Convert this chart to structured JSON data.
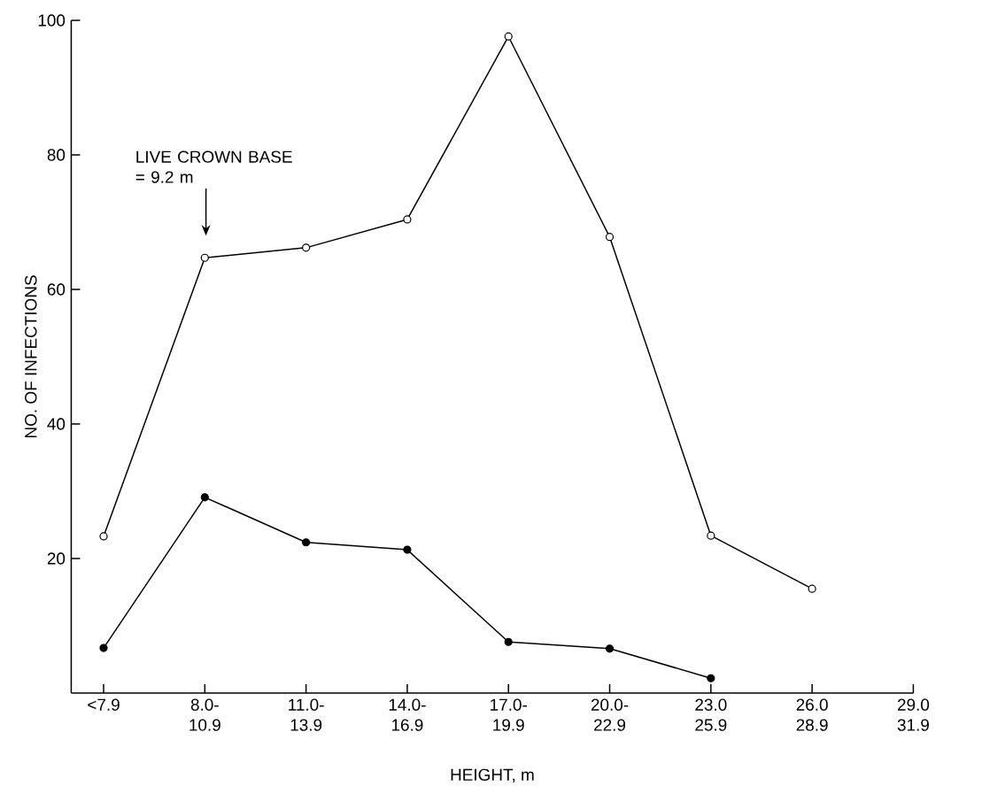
{
  "chart_data": {
    "type": "line",
    "xlabel": "HEIGHT, m",
    "ylabel": "NO. OF INFECTIONS",
    "categories": [
      "<7.9",
      "8.0- 10.9",
      "11.0- 13.9",
      "14.0- 16.9",
      "17.0- 19.9",
      "20.0- 22.9",
      "23.0 25.9",
      "26.0 28.9",
      "29.0 31.9"
    ],
    "series": [
      {
        "color": "#000000",
        "values": [
          23.3,
          64.7,
          66.2,
          70.4,
          97.6,
          67.8,
          23.4,
          15.5,
          null
        ]
      },
      {
        "color": "#000000",
        "values": [
          6.7,
          29.1,
          22.4,
          21.3,
          7.6,
          6.6,
          2.2,
          null,
          null
        ]
      }
    ],
    "ylim": [
      0,
      100
    ],
    "yticks": [
      20,
      40,
      60,
      80,
      100
    ],
    "marker": "circle",
    "line_style": "solid",
    "annotations": [
      "LIVE CROWN BASE = 9.2 m"
    ]
  }
}
